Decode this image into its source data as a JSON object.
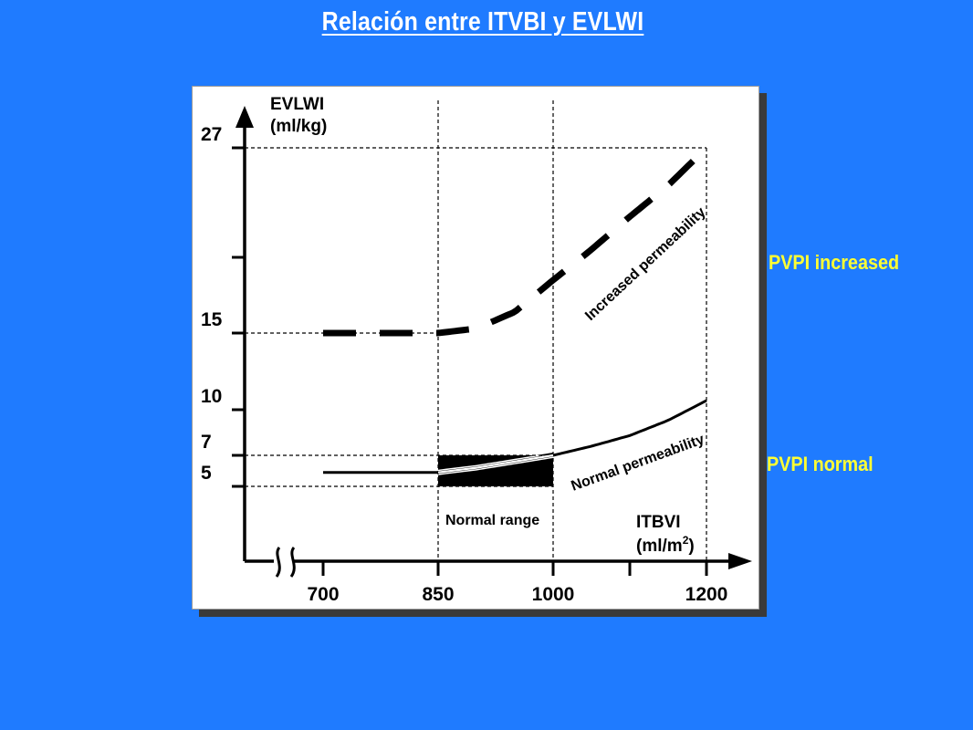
{
  "slide": {
    "title": "Relación entre ITVBI y EVLWI",
    "label_increased": "PVPI increased",
    "label_normal": "PVPI normal"
  },
  "colors": {
    "background": "#1f7bff",
    "title": "#ffffff",
    "side_labels": "#ffff33",
    "panel": "#ffffff",
    "ink": "#000000"
  },
  "chart_data": {
    "type": "line",
    "ylabel_line1": "EVLWI",
    "ylabel_line2": "(ml/kg)",
    "xlabel_line1": "ITBVI",
    "xlabel_line2": "(ml/m",
    "xlabel_sup": "2",
    "xlabel_close": ")",
    "y_ticks": [
      {
        "value": 5,
        "label": "5"
      },
      {
        "value": 7,
        "label": "7"
      },
      {
        "value": 10,
        "label": "10"
      },
      {
        "value": 15,
        "label": "15"
      },
      {
        "value": 20,
        "label": ""
      },
      {
        "value": 27,
        "label": "27"
      }
    ],
    "x_ticks": [
      {
        "value": 700,
        "label": "700"
      },
      {
        "value": 850,
        "label": "850"
      },
      {
        "value": 1000,
        "label": "1000"
      },
      {
        "value": 1100,
        "label": ""
      },
      {
        "value": 1200,
        "label": "1200"
      }
    ],
    "xlim": [
      700,
      1200
    ],
    "ylim": [
      5,
      27
    ],
    "grid_vertical": [
      850,
      1000,
      1200
    ],
    "grid_horizontal": [
      27,
      15,
      7,
      5
    ],
    "axis_break": "x-axis near origin",
    "normal_range": {
      "x": [
        850,
        1000
      ],
      "y": [
        5,
        7
      ],
      "label": "Normal range"
    },
    "series": [
      {
        "name": "Increased permeability",
        "style": "dashed",
        "x": [
          700,
          800,
          850,
          900,
          950,
          1000,
          1050,
          1100,
          1150,
          1200
        ],
        "y": [
          15,
          15,
          15,
          15.3,
          16.4,
          18.5,
          20.5,
          22.6,
          24.6,
          27
        ]
      },
      {
        "name": "Normal permeability",
        "style": "solid",
        "x": [
          700,
          800,
          850,
          900,
          950,
          1000,
          1050,
          1100,
          1150,
          1200
        ],
        "y": [
          5.9,
          5.9,
          5.9,
          6.2,
          6.6,
          7,
          7.6,
          8.3,
          9.3,
          10.6
        ]
      }
    ]
  }
}
